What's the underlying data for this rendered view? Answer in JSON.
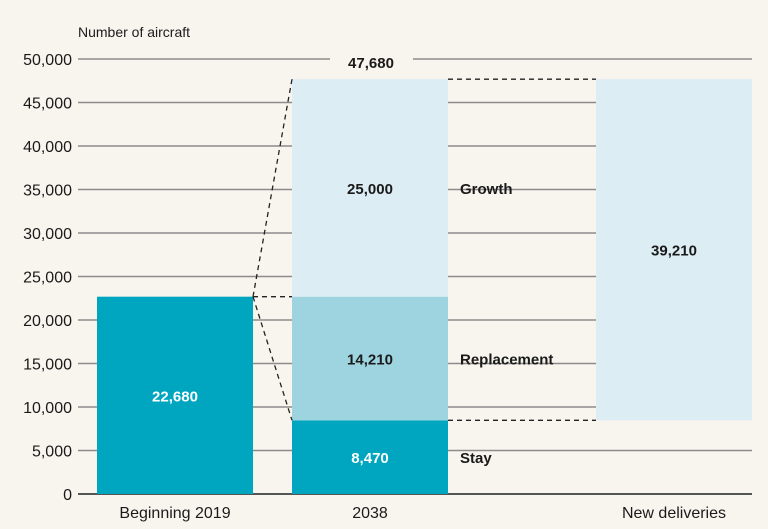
{
  "chart_data": {
    "type": "bar",
    "subtype": "stacked-waterfall",
    "ylabel": "Number of aircraft",
    "ylim": [
      0,
      50000
    ],
    "yticks": [
      0,
      5000,
      10000,
      15000,
      20000,
      25000,
      30000,
      35000,
      40000,
      45000,
      50000
    ],
    "ytick_labels": [
      "0",
      "5,000",
      "10,000",
      "15,000",
      "20,000",
      "25,000",
      "30,000",
      "35,000",
      "40,000",
      "45,000",
      "50,000"
    ],
    "grid": true,
    "categories": [
      "Beginning 2019",
      "2038",
      "New deliveries"
    ],
    "total_label": "47,680",
    "total": 47680,
    "segments": [
      {
        "category": "Beginning 2019",
        "name": "",
        "base": 0,
        "value": 22680,
        "label": "22,680",
        "color": "#00a5bf",
        "label_color": "#ffffff"
      },
      {
        "category": "2038",
        "name": "Stay",
        "base": 0,
        "value": 8470,
        "label": "8,470",
        "color": "#00a5bf",
        "label_color": "#ffffff"
      },
      {
        "category": "2038",
        "name": "Replacement",
        "base": 8470,
        "value": 14210,
        "label": "14,210",
        "color": "#9ed4e0",
        "label_color": "#1a1a1a"
      },
      {
        "category": "2038",
        "name": "Growth",
        "base": 22680,
        "value": 25000,
        "label": "25,000",
        "color": "#dcedf4",
        "label_color": "#1a1a1a"
      },
      {
        "category": "New deliveries",
        "name": "",
        "base": 8470,
        "value": 39210,
        "label": "39,210",
        "color": "#dcedf4",
        "label_color": "#1a1a1a"
      }
    ],
    "colors": {
      "background": "#f8f5ef",
      "grid": "#8c8c8c"
    }
  }
}
